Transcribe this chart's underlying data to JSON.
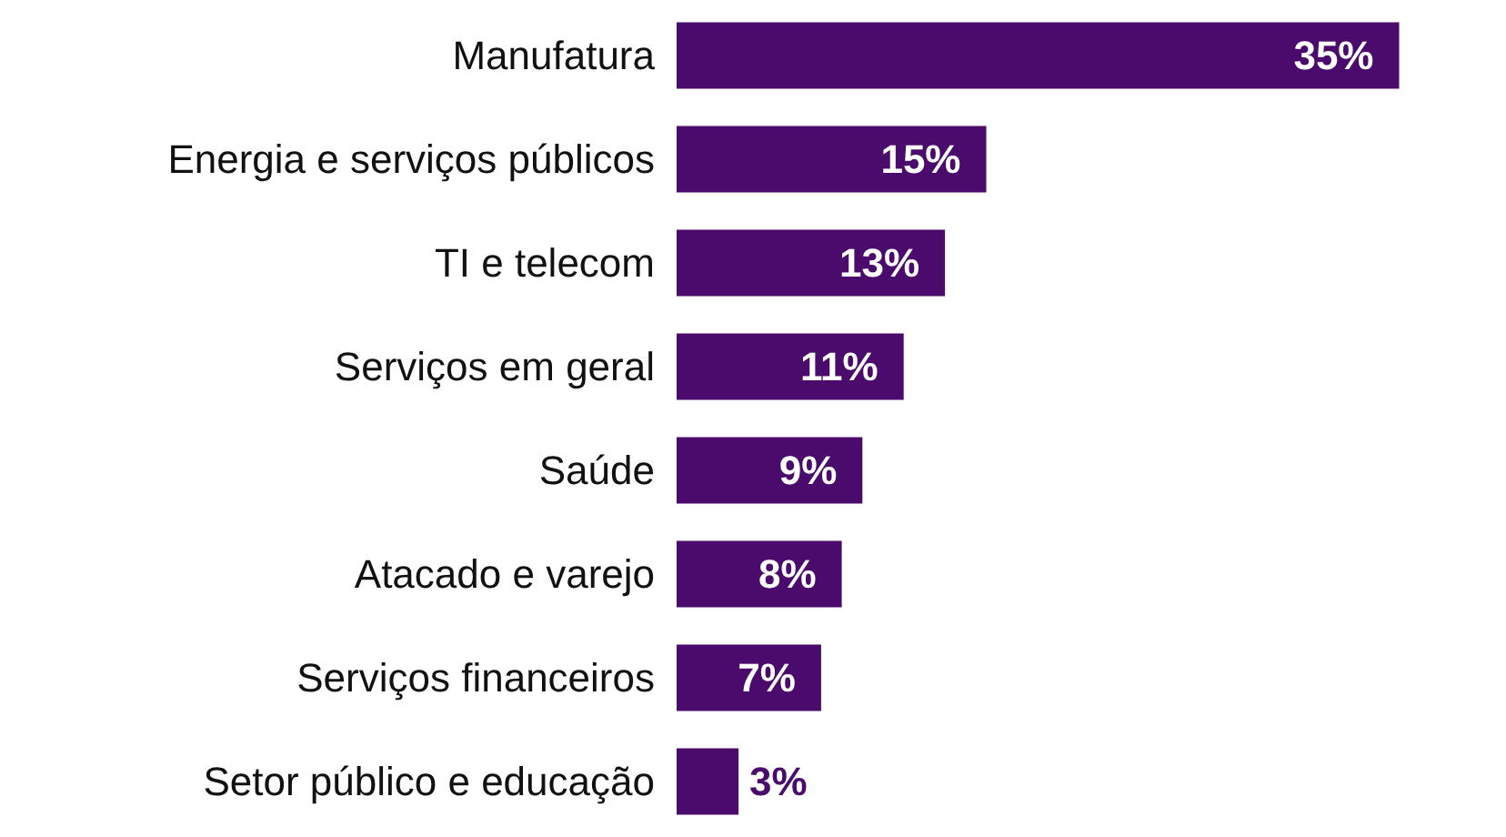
{
  "chart_data": {
    "type": "bar",
    "orientation": "horizontal",
    "categories": [
      "Manufatura",
      "Energia e serviços públicos",
      "TI e telecom",
      "Serviços em geral",
      "Saúde",
      "Atacado e varejo",
      "Serviços financeiros",
      "Setor público e educação"
    ],
    "values": [
      35,
      15,
      13,
      11,
      9,
      8,
      7,
      3
    ],
    "value_labels": [
      "35%",
      "15%",
      "13%",
      "11%",
      "9%",
      "8%",
      "7%",
      "3%"
    ],
    "color": "#4b0b6d"
  }
}
